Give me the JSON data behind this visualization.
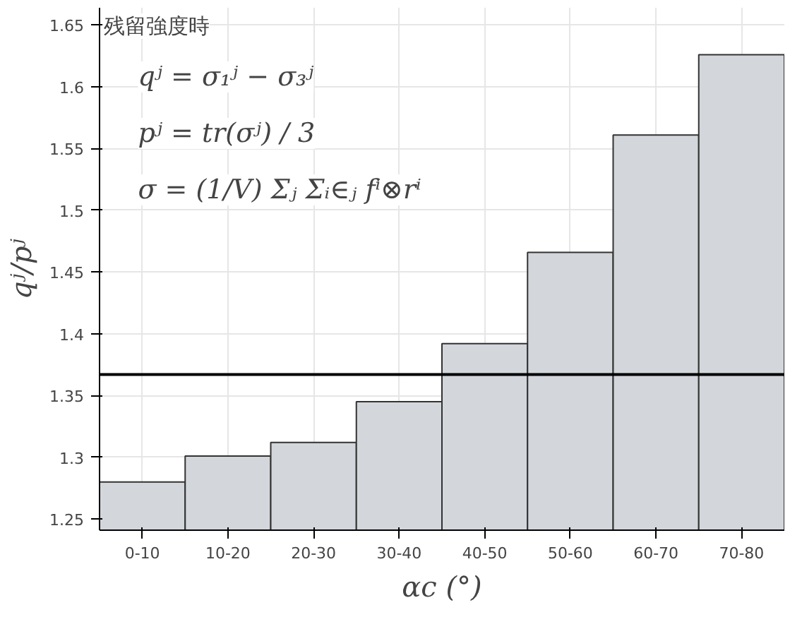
{
  "chart_data": {
    "type": "bar",
    "xlabel": "αc (°)",
    "ylabel": "qʲ/pʲ",
    "categories": [
      "0-10",
      "10-20",
      "20-30",
      "30-40",
      "40-50",
      "50-60",
      "60-70",
      "70-80"
    ],
    "values": [
      1.28,
      1.301,
      1.312,
      1.345,
      1.392,
      1.466,
      1.561,
      1.626
    ],
    "color": "#d3d6da",
    "ylim": [
      1.241,
      1.664
    ],
    "yticks": [
      1.25,
      1.3,
      1.35,
      1.4,
      1.45,
      1.5,
      1.55,
      1.6,
      1.65
    ],
    "grid": true,
    "ref_lines": [
      {
        "axis": "y",
        "value": 1.367,
        "color": "#000000"
      }
    ],
    "annotations": [
      "残留強度時",
      "qʲ = σ₁ʲ − σ₃ʲ",
      "pʲ = tr(σʲ) / 3",
      "σ = (1/V) Σⱼ Σᵢ∈ⱼ fⁱ⊗rⁱ"
    ]
  }
}
